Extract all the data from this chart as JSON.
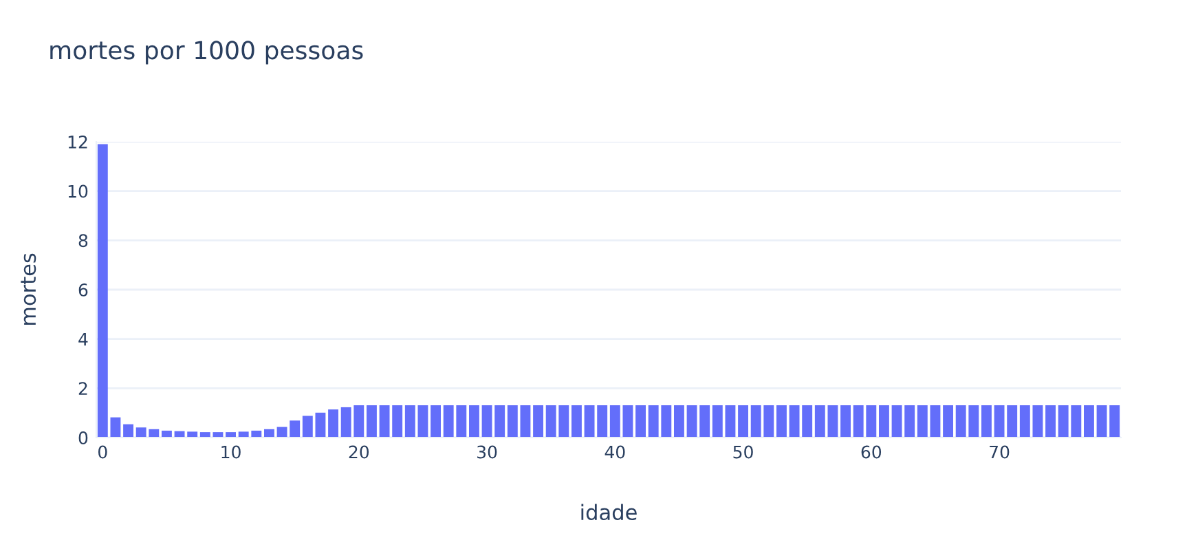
{
  "chart_data": {
    "type": "bar",
    "title": "mortes por 1000 pessoas",
    "xlabel": "idade",
    "ylabel": "mortes",
    "color": "#636efa",
    "x": [
      0,
      1,
      2,
      3,
      4,
      5,
      6,
      7,
      8,
      9,
      10,
      11,
      12,
      13,
      14,
      15,
      16,
      17,
      18,
      19,
      20,
      21,
      22,
      23,
      24,
      25,
      26,
      27,
      28,
      29,
      30,
      31,
      32,
      33,
      34,
      35,
      36,
      37,
      38,
      39,
      40,
      41,
      42,
      43,
      44,
      45,
      46,
      47,
      48,
      49,
      50,
      51,
      52,
      53,
      54,
      55,
      56,
      57,
      58,
      59,
      60,
      61,
      62,
      63,
      64,
      65,
      66,
      67,
      68,
      69,
      70,
      71,
      72,
      73,
      74,
      75,
      76,
      77,
      78,
      79
    ],
    "values": [
      11.9,
      0.82,
      0.54,
      0.41,
      0.34,
      0.28,
      0.26,
      0.24,
      0.22,
      0.22,
      0.22,
      0.24,
      0.28,
      0.34,
      0.43,
      0.69,
      0.88,
      1.01,
      1.14,
      1.23,
      1.31,
      1.31,
      1.31,
      1.31,
      1.31,
      1.31,
      1.31,
      1.31,
      1.31,
      1.31,
      1.31,
      1.31,
      1.31,
      1.31,
      1.31,
      1.31,
      1.31,
      1.31,
      1.31,
      1.31,
      1.31,
      1.31,
      1.31,
      1.31,
      1.31,
      1.31,
      1.31,
      1.31,
      1.31,
      1.31,
      1.31,
      1.31,
      1.31,
      1.31,
      1.31,
      1.31,
      1.31,
      1.31,
      1.31,
      1.31,
      1.31,
      1.31,
      1.31,
      1.31,
      1.31,
      1.31,
      1.31,
      1.31,
      1.31,
      1.31,
      1.31,
      1.31,
      1.31,
      1.31,
      1.31,
      1.31,
      1.31,
      1.31,
      1.31,
      1.31
    ],
    "xlim": [
      -0.5,
      79.5
    ],
    "xticks": [
      0,
      10,
      20,
      30,
      40,
      50,
      60,
      70
    ],
    "ylim": [
      0,
      12
    ],
    "yticks": [
      0,
      2,
      4,
      6,
      8,
      10,
      12
    ],
    "grid": "y",
    "legend": false
  }
}
